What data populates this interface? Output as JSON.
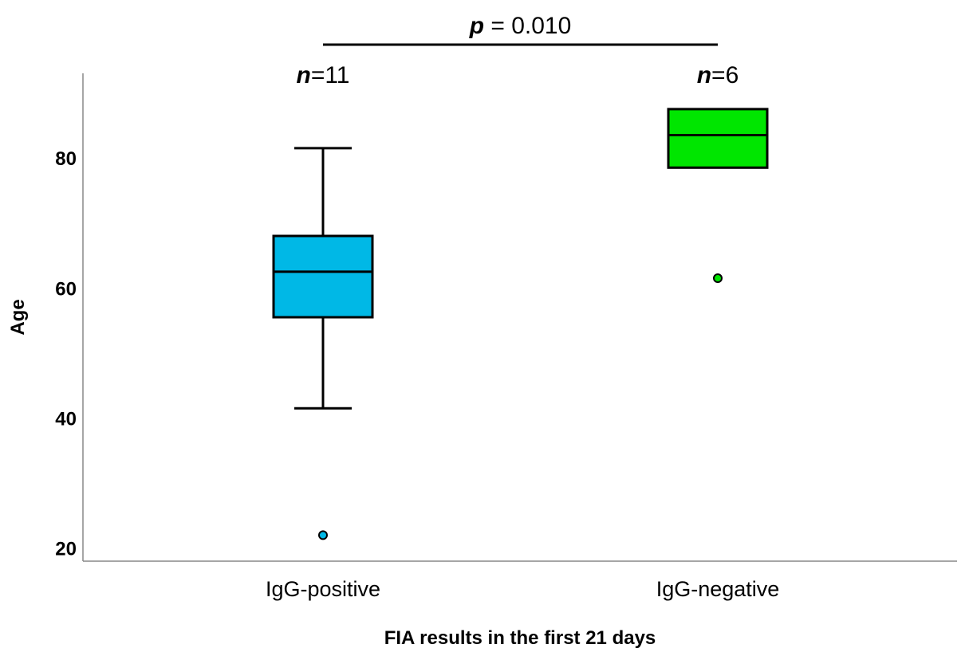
{
  "chart_data": {
    "type": "boxplot",
    "title": "",
    "xlabel": "FIA results in the first 21 days",
    "ylabel": "Age",
    "ylim": [
      18,
      93
    ],
    "yticks": [
      20,
      40,
      60,
      80
    ],
    "grid": false,
    "legend": "none",
    "categories": [
      "IgG-positive",
      "IgG-negative"
    ],
    "series": [
      {
        "category": "IgG-positive",
        "color": "#00b8e6",
        "whisker_low": 41.5,
        "q1": 55.5,
        "median": 62.5,
        "q3": 68,
        "whisker_high": 81.5,
        "outliers": [
          22
        ],
        "n_label": "=11"
      },
      {
        "category": "IgG-negative",
        "color": "#00e600",
        "whisker_low": 78.5,
        "q1": 78.5,
        "median": 83.5,
        "q3": 87.5,
        "whisker_high": 87.5,
        "outliers": [
          61.5
        ],
        "n_label": "=6"
      }
    ],
    "annotations": {
      "n_symbol": "n",
      "p_symbol": "p",
      "p_value_text": " = 0.010"
    }
  }
}
